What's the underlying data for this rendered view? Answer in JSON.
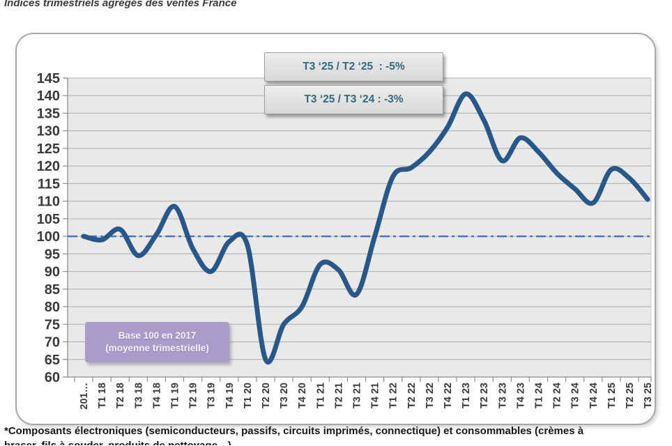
{
  "page": {
    "title": "Indices trimestriels agrégés des ventes France",
    "footnote_line1": "*Composants électroniques (semiconducteurs, passifs, circuits imprimés, connectique) et consommables (crèmes à",
    "footnote_line2": "braser, fils à souder, produits de nettoyage…)"
  },
  "chart_data": {
    "type": "line",
    "title": "Indices trimestriels agrégés des ventes France",
    "categories": [
      "201…",
      "T1 18",
      "T2 18",
      "T3 18",
      "T4 18",
      "T1 19",
      "T2 19",
      "T3 19",
      "T4 19",
      "T1 20",
      "T2 20",
      "T3 20",
      "T4 20",
      "T1 21",
      "T2 21",
      "T3 21",
      "T4 21",
      "T1 22",
      "T2 22",
      "T3 22",
      "T4 22",
      "T1 23",
      "T2 23",
      "T3 23",
      "T4 23",
      "T1 24",
      "T2 24",
      "T3 24",
      "T4 24",
      "T1 25",
      "T2 25",
      "T3 25"
    ],
    "series": [
      {
        "name": "Indice trimestriel agrégé des ventes France",
        "values": [
          100,
          99,
          102,
          94.5,
          100.5,
          108.5,
          96.5,
          90,
          98.5,
          97.5,
          65,
          75,
          80,
          92,
          90.5,
          83.5,
          100,
          117,
          119.5,
          124,
          131,
          140.5,
          133,
          121.5,
          128,
          124,
          118,
          113.5,
          109.5,
          119,
          116.5,
          110.5
        ]
      }
    ],
    "ylim": [
      60,
      145
    ],
    "ytick_step": 5,
    "grid": "horizontal",
    "legend": "none",
    "annotations": [
      "T3 ‘25 / T2 ‘25  : -5%",
      "T3 ‘25 / T3 ‘24 : -3%"
    ],
    "baseline": {
      "value": 100,
      "style": "dash-dot",
      "color": "#4677b4",
      "label_line1": "Base 100 en 2017",
      "label_line2": "(moyenne trimestrielle)"
    },
    "line_color": "#275889",
    "plot_bg": "#e9e9e9",
    "grid_color": "#b2b2b2",
    "axis_color": "#9a9a9a",
    "tick_color": "#8c8c8c",
    "label_color": "#3a3a3a"
  }
}
